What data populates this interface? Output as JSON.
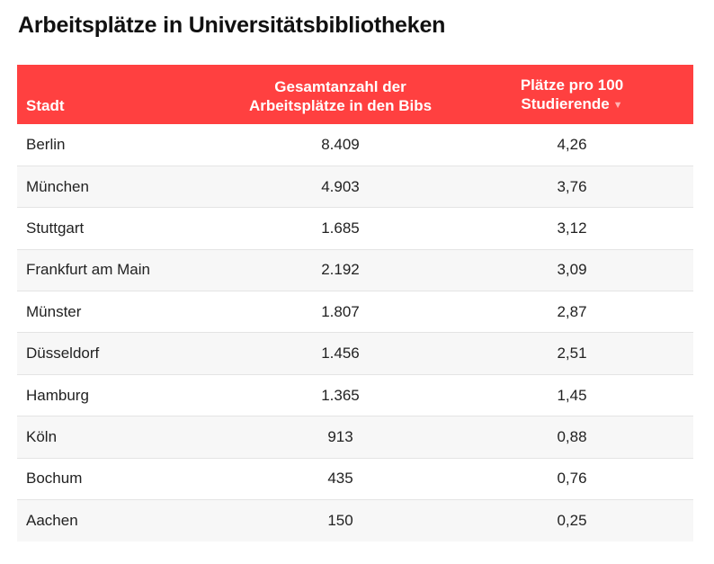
{
  "title": "Arbeitsplätze in Universitätsbibliotheken",
  "columns": [
    {
      "label": "Stadt"
    },
    {
      "label_line1": "Gesamtanzahl der",
      "label_line2": "Arbeitsplätze in den Bibs"
    },
    {
      "label_line1": "Plätze pro 100",
      "label_line2": "Studierende",
      "sort": "descending"
    }
  ],
  "rows": [
    {
      "city": "Berlin",
      "total": "8.409",
      "per100": "4,26"
    },
    {
      "city": "München",
      "total": "4.903",
      "per100": "3,76"
    },
    {
      "city": "Stuttgart",
      "total": "1.685",
      "per100": "3,12"
    },
    {
      "city": "Frankfurt am Main",
      "total": "2.192",
      "per100": "3,09"
    },
    {
      "city": "Münster",
      "total": "1.807",
      "per100": "2,87"
    },
    {
      "city": "Düsseldorf",
      "total": "1.456",
      "per100": "2,51"
    },
    {
      "city": "Hamburg",
      "total": "1.365",
      "per100": "1,45"
    },
    {
      "city": "Köln",
      "total": "913",
      "per100": "0,88"
    },
    {
      "city": "Bochum",
      "total": "435",
      "per100": "0,76"
    },
    {
      "city": "Aachen",
      "total": "150",
      "per100": "0,25"
    }
  ],
  "colors": {
    "header_bg": "#ff4040",
    "header_text": "#ffffff",
    "row_alt_bg": "#f7f7f7"
  },
  "chart_data": {
    "type": "table",
    "title": "Arbeitsplätze in Universitätsbibliotheken",
    "columns": [
      "Stadt",
      "Gesamtanzahl der Arbeitsplätze in den Bibs",
      "Plätze pro 100 Studierende"
    ],
    "sorted_by": "Plätze pro 100 Studierende",
    "sort_order": "descending",
    "categories": [
      "Berlin",
      "München",
      "Stuttgart",
      "Frankfurt am Main",
      "Münster",
      "Düsseldorf",
      "Hamburg",
      "Köln",
      "Bochum",
      "Aachen"
    ],
    "series": [
      {
        "name": "Gesamtanzahl der Arbeitsplätze in den Bibs",
        "values": [
          8409,
          4903,
          1685,
          2192,
          1807,
          1456,
          1365,
          913,
          435,
          150
        ]
      },
      {
        "name": "Plätze pro 100 Studierende",
        "values": [
          4.26,
          3.76,
          3.12,
          3.09,
          2.87,
          2.51,
          1.45,
          0.88,
          0.76,
          0.25
        ]
      }
    ]
  }
}
